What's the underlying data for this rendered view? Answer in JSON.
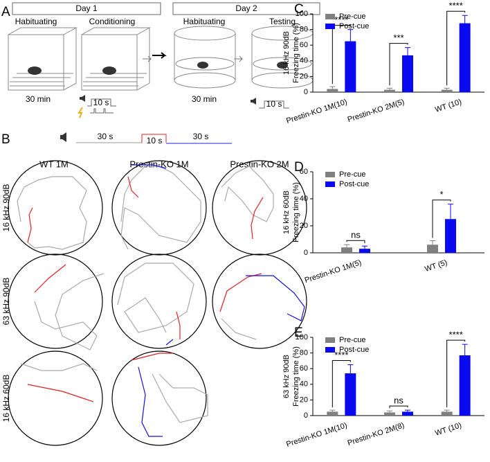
{
  "panel_a": {
    "label": "A",
    "day1": "Day 1",
    "day2": "Day 2",
    "hab1": "Habituating",
    "cond": "Conditioning",
    "hab2": "Habituating",
    "test": "Testing",
    "t1": "30 min",
    "t2": "10 s",
    "t3": "30 min",
    "t4": "10 s"
  },
  "panel_b": {
    "label": "B",
    "seg1": "30 s",
    "seg2": "10 s",
    "seg3": "30 s",
    "col1": "WT 1M",
    "col2": "Prestin-KO 1M",
    "col3": "Prestin-KO 2M",
    "row1": "16 kHz 90dB",
    "row2": "63 kHz 90dB",
    "row3": "16 kHz 60dB"
  },
  "chart_data": [
    {
      "type": "bar",
      "label": "C",
      "ylabel": [
        "16 kHz 90dB",
        "Freezing time (%)"
      ],
      "categories": [
        "Prestin-KO 1M(10)",
        "Prestin-KO 2M(5)",
        "WT (10)"
      ],
      "series": [
        {
          "name": "Pre-cue",
          "color": "#808080",
          "values": [
            4,
            3,
            3
          ],
          "errors": [
            3,
            2,
            2
          ]
        },
        {
          "name": "Post-cue",
          "color": "#0a0af0",
          "values": [
            65,
            47,
            88
          ],
          "errors": [
            15,
            10,
            10
          ]
        }
      ],
      "significance": [
        "****",
        "***",
        "****"
      ],
      "ylim": [
        0,
        100
      ],
      "yticks": [
        0,
        20,
        40,
        60,
        80,
        100
      ],
      "legend": "upper left"
    },
    {
      "type": "bar",
      "label": "D",
      "ylabel": [
        "16 kHz 60dB",
        "Freezing time (%)"
      ],
      "categories": [
        "Prestin-KO 1M(5)",
        "WT (5)"
      ],
      "series": [
        {
          "name": "Pre-cue",
          "color": "#808080",
          "values": [
            4,
            6
          ],
          "errors": [
            2,
            3
          ]
        },
        {
          "name": "Post-cue",
          "color": "#0a0af0",
          "values": [
            3,
            25
          ],
          "errors": [
            2,
            11
          ]
        }
      ],
      "significance": [
        "ns",
        "*"
      ],
      "ylim": [
        0,
        60
      ],
      "yticks": [
        0,
        20,
        40,
        60
      ],
      "legend": "upper left"
    },
    {
      "type": "bar",
      "label": "E",
      "ylabel": [
        "63 kHz 90dB",
        "Freezing time (%)"
      ],
      "categories": [
        "Prestin-KO 1M(10)",
        "Prestin-KO 2M(8)",
        "WT (10)"
      ],
      "series": [
        {
          "name": "Pre-cue",
          "color": "#808080",
          "values": [
            5,
            4,
            5
          ],
          "errors": [
            2,
            2,
            2
          ]
        },
        {
          "name": "Post-cue",
          "color": "#0a0af0",
          "values": [
            54,
            5,
            77
          ],
          "errors": [
            11,
            2,
            14
          ]
        }
      ],
      "significance": [
        "****",
        "ns",
        "****"
      ],
      "ylim": [
        0,
        100
      ],
      "yticks": [
        0,
        20,
        40,
        60,
        80,
        100
      ],
      "legend": "upper left"
    }
  ]
}
